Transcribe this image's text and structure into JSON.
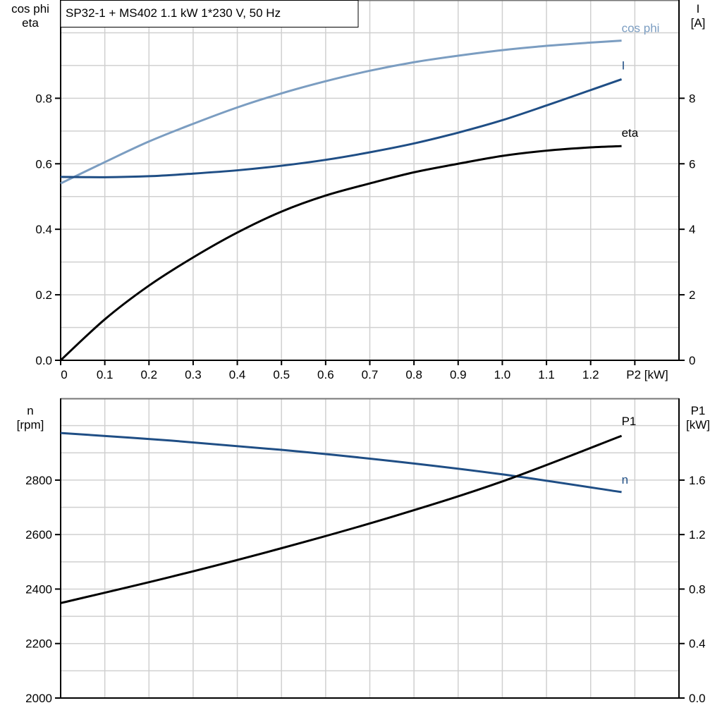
{
  "chart_data": [
    {
      "type": "line",
      "title": "SP32-1 + MS402   1.1 kW   1*230 V, 50 Hz",
      "xlabel": "P2 [kW]",
      "ylabel_left": [
        "cos phi",
        "eta"
      ],
      "ylabel_right": [
        "I",
        "[A]"
      ],
      "xlim": [
        0,
        1.4
      ],
      "ylim_left": [
        0,
        1.1
      ],
      "ylim_right": [
        0,
        11
      ],
      "xticks": [
        "0",
        "0.1",
        "0.2",
        "0.3",
        "0.4",
        "0.5",
        "0.6",
        "0.7",
        "0.8",
        "0.9",
        "1.0",
        "1.1",
        "1.2"
      ],
      "yticks_left": [
        "0.0",
        "0.2",
        "0.4",
        "0.6",
        "0.8"
      ],
      "yticks_right": [
        "0",
        "2",
        "4",
        "6",
        "8"
      ],
      "grid": true,
      "series": [
        {
          "name": "cos phi",
          "axis": "left",
          "color": "#7b9dc1",
          "x": [
            0,
            0.1,
            0.2,
            0.3,
            0.4,
            0.5,
            0.6,
            0.7,
            0.8,
            0.9,
            1.0,
            1.1,
            1.2,
            1.27
          ],
          "y": [
            0.54,
            0.605,
            0.668,
            0.722,
            0.772,
            0.815,
            0.852,
            0.884,
            0.91,
            0.93,
            0.947,
            0.96,
            0.97,
            0.976
          ]
        },
        {
          "name": "I",
          "axis": "right",
          "color": "#1f4e85",
          "x": [
            0,
            0.1,
            0.2,
            0.3,
            0.4,
            0.5,
            0.6,
            0.7,
            0.8,
            0.9,
            1.0,
            1.1,
            1.2,
            1.27
          ],
          "y": [
            5.6,
            5.59,
            5.62,
            5.7,
            5.8,
            5.94,
            6.12,
            6.35,
            6.62,
            6.95,
            7.33,
            7.78,
            8.25,
            8.58
          ]
        },
        {
          "name": "eta",
          "axis": "left",
          "color": "#000000",
          "x": [
            0,
            0.1,
            0.2,
            0.3,
            0.4,
            0.5,
            0.6,
            0.7,
            0.8,
            0.9,
            1.0,
            1.1,
            1.2,
            1.27
          ],
          "y": [
            0,
            0.125,
            0.228,
            0.314,
            0.39,
            0.454,
            0.503,
            0.54,
            0.574,
            0.6,
            0.624,
            0.64,
            0.65,
            0.654
          ]
        }
      ]
    },
    {
      "type": "line",
      "xlim": [
        0,
        1.4
      ],
      "ylabel_left": [
        "n",
        "[rpm]"
      ],
      "ylabel_right": [
        "P1",
        "[kW]"
      ],
      "ylim_left": [
        2000,
        3100
      ],
      "ylim_right": [
        0,
        2.2
      ],
      "yticks_left": [
        "2000",
        "2200",
        "2400",
        "2600",
        "2800"
      ],
      "yticks_right": [
        "0.0",
        "0.4",
        "0.8",
        "1.2",
        "1.6"
      ],
      "grid": true,
      "series": [
        {
          "name": "n",
          "axis": "left",
          "color": "#1f4e85",
          "x": [
            0,
            0.25,
            0.5,
            0.75,
            1.0,
            1.27
          ],
          "y": [
            2973,
            2945,
            2911,
            2870,
            2821,
            2756
          ]
        },
        {
          "name": "P1",
          "axis": "right",
          "color": "#000000",
          "x": [
            0,
            0.25,
            0.5,
            0.75,
            1.0,
            1.27
          ],
          "y": [
            0.697,
            0.89,
            1.1,
            1.33,
            1.59,
            1.925
          ]
        }
      ]
    }
  ]
}
